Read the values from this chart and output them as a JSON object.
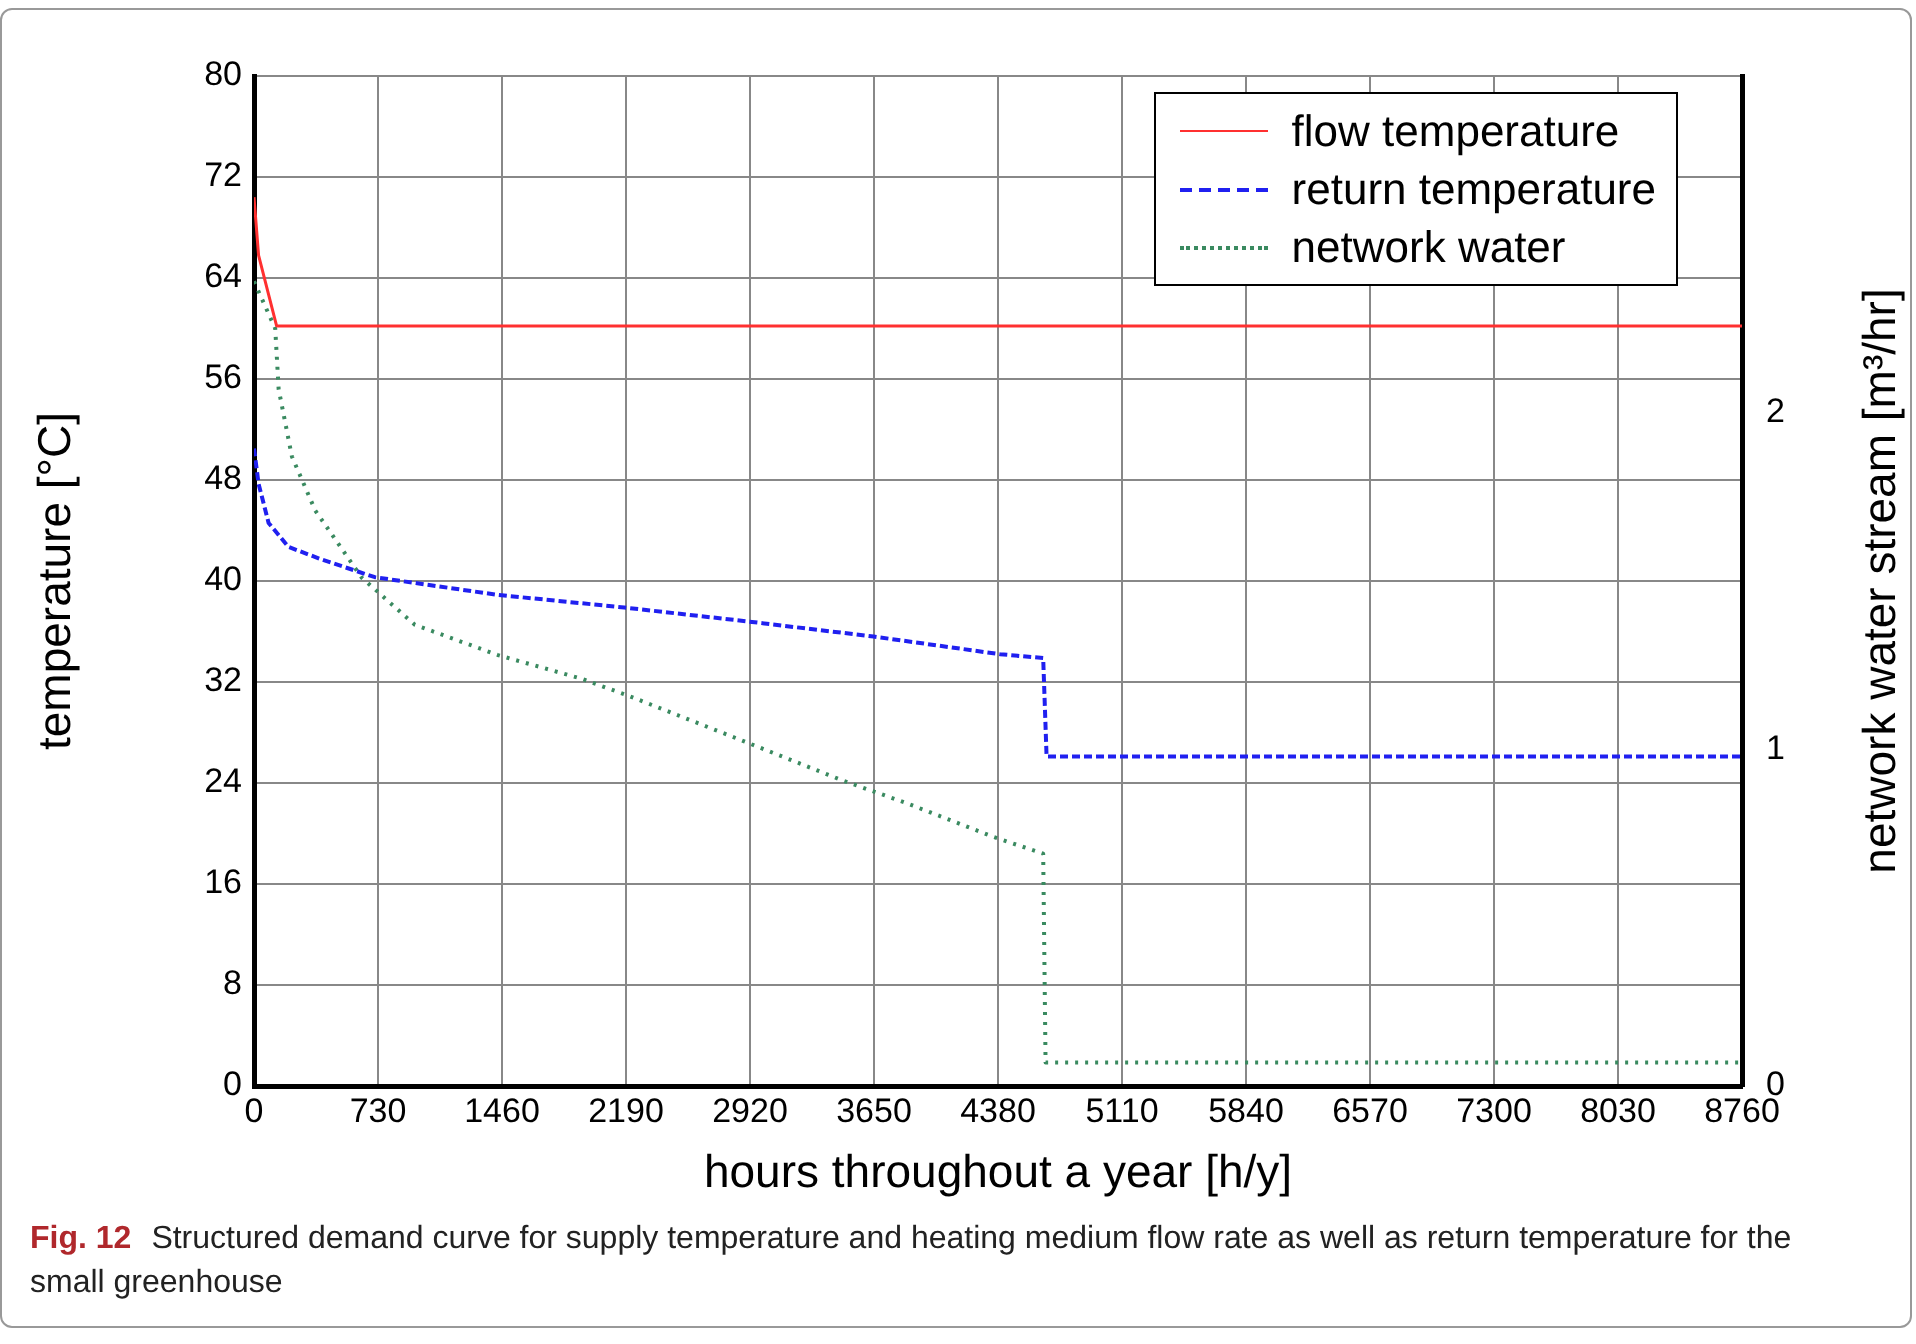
{
  "chart_data": {
    "type": "line",
    "xlabel": "hours throughout a year [h/y]",
    "ylabel": "temperature [°C]",
    "y2label": "network water stream [m³/hr]",
    "xlim": [
      0,
      8760
    ],
    "xticks": [
      0,
      730,
      1460,
      2190,
      2920,
      3650,
      4380,
      5110,
      5840,
      6570,
      7300,
      8030,
      8760
    ],
    "ylim": [
      0,
      80
    ],
    "yticks": [
      0,
      8,
      16,
      24,
      32,
      40,
      48,
      56,
      64,
      72,
      80
    ],
    "y2lim": [
      0,
      3
    ],
    "y2ticks": [
      0,
      1,
      2
    ],
    "grid": true,
    "legend": "top right",
    "marker": "none",
    "series": [
      {
        "name": "flow temperature",
        "color": "#ff3030",
        "line_style": "solid",
        "x": [
          0,
          27,
          133,
          8760
        ],
        "values": [
          70.4,
          65.8,
          60.2,
          60.2
        ]
      },
      {
        "name": "return temperature",
        "color": "#2020f0",
        "line_style": "dashed",
        "x": [
          0,
          27,
          86,
          203,
          399,
          712,
          1436,
          2180,
          2904,
          3648,
          4392,
          4646,
          4666,
          8760
        ],
        "values": [
          50.5,
          47.7,
          44.6,
          42.7,
          41.7,
          40.3,
          38.9,
          37.9,
          36.8,
          35.6,
          34.2,
          33.9,
          26.1,
          26.1
        ]
      },
      {
        "name": "network water",
        "color": "#3a8a60",
        "line_style": "dotted",
        "axis": "y2",
        "x": [
          0,
          125,
          145,
          223,
          360,
          634,
          947,
          1436,
          1926,
          2200,
          2904,
          3253,
          3452,
          3842,
          4353,
          4646,
          4660,
          8760
        ],
        "values": [
          2.39,
          2.25,
          2.07,
          1.87,
          1.71,
          1.51,
          1.37,
          1.28,
          1.21,
          1.16,
          1.02,
          0.95,
          0.91,
          0.84,
          0.74,
          0.69,
          0.07,
          0.07
        ]
      }
    ],
    "annotations": [
      "Fig. 12",
      "Structured demand curve for supply temperature and heating medium flow rate as well as return temperature for the small greenhouse"
    ]
  }
}
